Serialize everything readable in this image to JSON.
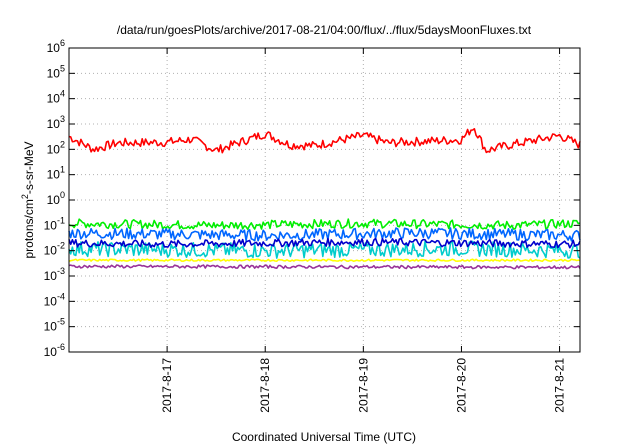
{
  "chart_data": {
    "type": "line",
    "title": "/data/run/goesPlots/archive/2017-08-21/04:00/flux/../flux/5daysMoonFluxes.txt",
    "xlabel": "Coordinated Universal Time (UTC)",
    "ylabel": "protons/cm²-s-sr-MeV",
    "yscale": "log",
    "ylim": [
      1e-06,
      1000000.0
    ],
    "xlim": [
      "2017-08-16 00:00",
      "2017-08-21 05:00"
    ],
    "grid": true,
    "legend": "none",
    "y_ticks": [
      {
        "value": 1e-06,
        "base": "10",
        "exp": "-6"
      },
      {
        "value": 1e-05,
        "base": "10",
        "exp": "-5"
      },
      {
        "value": 0.0001,
        "base": "10",
        "exp": "-4"
      },
      {
        "value": 0.001,
        "base": "10",
        "exp": "-3"
      },
      {
        "value": 0.01,
        "base": "10",
        "exp": "-2"
      },
      {
        "value": 0.1,
        "base": "10",
        "exp": "-1"
      },
      {
        "value": 1.0,
        "base": "10",
        "exp": "0"
      },
      {
        "value": 10.0,
        "base": "10",
        "exp": "1"
      },
      {
        "value": 100.0,
        "base": "10",
        "exp": "2"
      },
      {
        "value": 1000.0,
        "base": "10",
        "exp": "3"
      },
      {
        "value": 10000.0,
        "base": "10",
        "exp": "4"
      },
      {
        "value": 100000.0,
        "base": "10",
        "exp": "5"
      },
      {
        "value": 1000000.0,
        "base": "10",
        "exp": "6"
      }
    ],
    "x_ticks": [
      {
        "label": "2017-8-17",
        "time": "2017-08-17 00:00"
      },
      {
        "label": "2017-8-18",
        "time": "2017-08-18 00:00"
      },
      {
        "label": "2017-8-19",
        "time": "2017-08-19 00:00"
      },
      {
        "label": "2017-8-20",
        "time": "2017-08-20 00:00"
      },
      {
        "label": "2017-8-21",
        "time": "2017-08-21 00:00"
      }
    ],
    "series": [
      {
        "color": "#ff0000",
        "base": 180,
        "jitter": 0.35,
        "points": [
          [
            "2017-08-16 00:00",
            320
          ],
          [
            "2017-08-16 06:00",
            100
          ],
          [
            "2017-08-16 12:00",
            180
          ],
          [
            "2017-08-17 00:00",
            190
          ],
          [
            "2017-08-17 06:00",
            250
          ],
          [
            "2017-08-17 12:00",
            90
          ],
          [
            "2017-08-18 00:00",
            420
          ],
          [
            "2017-08-18 06:00",
            150
          ],
          [
            "2017-08-18 12:00",
            140
          ],
          [
            "2017-08-19 00:00",
            350
          ],
          [
            "2017-08-19 06:00",
            180
          ],
          [
            "2017-08-19 12:00",
            200
          ],
          [
            "2017-08-20 00:00",
            240
          ],
          [
            "2017-08-20 03:00",
            800
          ],
          [
            "2017-08-20 06:00",
            90
          ],
          [
            "2017-08-20 12:00",
            150
          ],
          [
            "2017-08-21 00:00",
            350
          ],
          [
            "2017-08-21 05:00",
            150
          ]
        ]
      },
      {
        "color": "#00ee00",
        "base": 0.12,
        "jitter": 0.35,
        "points": [
          [
            "2017-08-16 00:00",
            0.12
          ],
          [
            "2017-08-17 12:00",
            0.1
          ],
          [
            "2017-08-19 00:00",
            0.12
          ],
          [
            "2017-08-20 12:00",
            0.1
          ],
          [
            "2017-08-21 05:00",
            0.12
          ]
        ]
      },
      {
        "color": "#0066ff",
        "base": 0.045,
        "jitter": 0.45,
        "points": [
          [
            "2017-08-16 00:00",
            0.05
          ],
          [
            "2017-08-18 00:00",
            0.04
          ],
          [
            "2017-08-19 12:00",
            0.05
          ],
          [
            "2017-08-21 05:00",
            0.04
          ]
        ]
      },
      {
        "color": "#00cccc",
        "base": 0.012,
        "jitter": 0.6,
        "points": [
          [
            "2017-08-16 00:00",
            0.012
          ],
          [
            "2017-08-18 00:00",
            0.01
          ],
          [
            "2017-08-20 00:00",
            0.012
          ],
          [
            "2017-08-21 05:00",
            0.01
          ]
        ]
      },
      {
        "color": "#0000cc",
        "base": 0.02,
        "jitter": 0.3,
        "points": [
          [
            "2017-08-16 00:00",
            0.02
          ],
          [
            "2017-08-17 00:00",
            0.018
          ],
          [
            "2017-08-19 00:00",
            0.022
          ],
          [
            "2017-08-21 05:00",
            0.018
          ]
        ]
      },
      {
        "color": "#ffff00",
        "base": 0.0042,
        "jitter": 0.08,
        "points": [
          [
            "2017-08-16 00:00",
            0.0042
          ],
          [
            "2017-08-21 05:00",
            0.0042
          ]
        ]
      },
      {
        "color": "#993399",
        "base": 0.0023,
        "jitter": 0.12,
        "points": [
          [
            "2017-08-16 00:00",
            0.0024
          ],
          [
            "2017-08-21 05:00",
            0.0022
          ]
        ]
      }
    ]
  }
}
